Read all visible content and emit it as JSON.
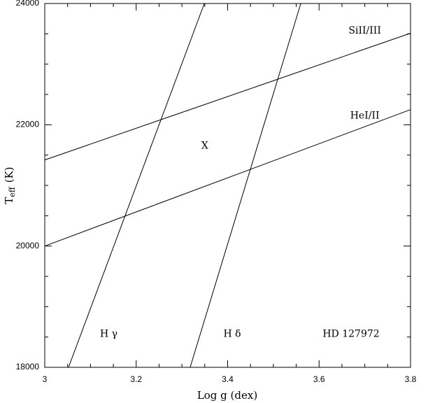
{
  "chart_data": {
    "type": "line",
    "xlabel": "Log g (dex)",
    "ylabel": {
      "main": "T",
      "sub": "eff",
      "rest": "(K)"
    },
    "xlim": [
      3,
      3.8
    ],
    "ylim": [
      18000,
      24000
    ],
    "xticks": [
      3,
      3.2,
      3.4,
      3.6,
      3.8
    ],
    "yticks": [
      18000,
      20000,
      22000,
      24000
    ],
    "xminorticks": [
      3.05,
      3.1,
      3.15,
      3.25,
      3.3,
      3.35,
      3.45,
      3.5,
      3.55,
      3.65,
      3.7,
      3.75
    ],
    "yminorticks": [
      18500,
      19000,
      19500,
      20500,
      21000,
      21500,
      22500,
      23000,
      23500
    ],
    "color": "#000000",
    "series": [
      {
        "name": "SiII/III",
        "x": [
          3,
          3.8
        ],
        "values": [
          21420,
          23510
        ]
      },
      {
        "name": "HeI/II",
        "x": [
          3,
          3.8
        ],
        "values": [
          20000,
          22250
        ]
      },
      {
        "name": "H γ",
        "x": [
          3.052,
          3.349
        ],
        "values": [
          18000,
          24000
        ]
      },
      {
        "name": "H δ",
        "x": [
          3.318,
          3.56
        ],
        "values": [
          18000,
          24000
        ]
      }
    ],
    "annotations": [
      {
        "text": "SiII/III",
        "x": 3.7,
        "y": 23550
      },
      {
        "text": "HeI/II",
        "x": 3.7,
        "y": 22150
      },
      {
        "text": "X",
        "x": 3.35,
        "y": 21650
      },
      {
        "text": "H γ",
        "x": 3.14,
        "y": 18550
      },
      {
        "text": "H δ",
        "x": 3.41,
        "y": 18550
      },
      {
        "text": "HD 127972",
        "x": 3.67,
        "y": 18550
      }
    ]
  }
}
